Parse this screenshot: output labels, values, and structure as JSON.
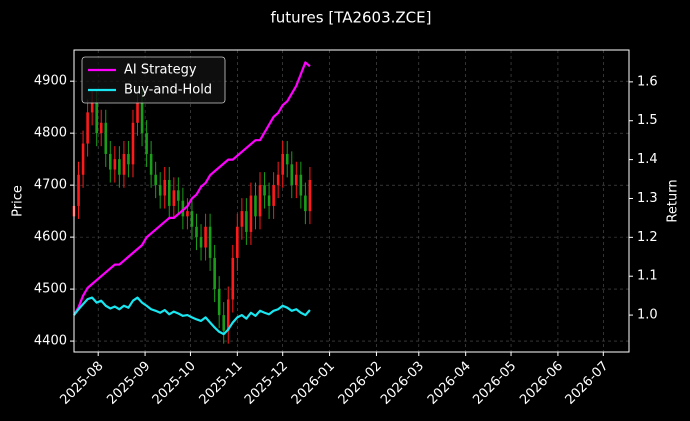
{
  "chart_data": {
    "type": "candlestick",
    "title": "futures [TA2603.ZCE]",
    "ylabel": "Price",
    "y2label": "Return",
    "x": [
      "2025-07-16",
      "2025-07-19",
      "2025-07-22",
      "2025-07-25",
      "2025-07-28",
      "2025-07-31",
      "2025-08-03",
      "2025-08-06",
      "2025-08-09",
      "2025-08-12",
      "2025-08-15",
      "2025-08-18",
      "2025-08-21",
      "2025-08-24",
      "2025-08-27",
      "2025-08-30",
      "2025-09-02",
      "2025-09-05",
      "2025-09-08",
      "2025-09-11",
      "2025-09-14",
      "2025-09-17",
      "2025-09-20",
      "2025-09-23",
      "2025-09-26",
      "2025-09-29",
      "2025-10-02",
      "2025-10-05",
      "2025-10-08",
      "2025-10-11",
      "2025-10-14",
      "2025-10-17",
      "2025-10-20",
      "2025-10-23",
      "2025-10-26",
      "2025-10-29",
      "2025-11-01",
      "2025-11-04",
      "2025-11-07",
      "2025-11-10",
      "2025-11-13",
      "2025-11-16",
      "2025-11-19",
      "2025-11-22",
      "2025-11-25",
      "2025-11-28",
      "2025-12-01",
      "2025-12-04",
      "2025-12-07",
      "2025-12-10",
      "2025-12-13",
      "2025-12-16",
      "2025-12-19"
    ],
    "open": [
      4640,
      4660,
      4720,
      4780,
      4840,
      4860,
      4800,
      4820,
      4760,
      4730,
      4750,
      4720,
      4760,
      4740,
      4820,
      4860,
      4800,
      4760,
      4720,
      4700,
      4680,
      4710,
      4660,
      4690,
      4670,
      4640,
      4650,
      4620,
      4600,
      4580,
      4620,
      4560,
      4500,
      4450,
      4420,
      4480,
      4560,
      4620,
      4650,
      4610,
      4680,
      4640,
      4700,
      4680,
      4660,
      4700,
      4720,
      4760,
      4740,
      4700,
      4720,
      4680,
      4650
    ],
    "high": [
      4685,
      4745,
      4805,
      4865,
      4885,
      4885,
      4845,
      4845,
      4785,
      4775,
      4775,
      4785,
      4785,
      4845,
      4885,
      4885,
      4825,
      4785,
      4745,
      4725,
      4735,
      4735,
      4715,
      4715,
      4695,
      4675,
      4675,
      4645,
      4625,
      4645,
      4645,
      4585,
      4525,
      4475,
      4505,
      4585,
      4645,
      4675,
      4675,
      4705,
      4705,
      4725,
      4725,
      4705,
      4725,
      4745,
      4785,
      4785,
      4765,
      4745,
      4745,
      4705,
      4735
    ],
    "low": [
      4615,
      4635,
      4695,
      4755,
      4815,
      4775,
      4775,
      4735,
      4705,
      4705,
      4695,
      4695,
      4715,
      4715,
      4795,
      4775,
      4735,
      4695,
      4675,
      4655,
      4655,
      4635,
      4635,
      4645,
      4615,
      4615,
      4595,
      4575,
      4555,
      4555,
      4535,
      4475,
      4425,
      4395,
      4395,
      4455,
      4535,
      4595,
      4585,
      4585,
      4615,
      4615,
      4655,
      4635,
      4635,
      4675,
      4695,
      4715,
      4675,
      4675,
      4655,
      4625,
      4625
    ],
    "close": [
      4660,
      4720,
      4780,
      4840,
      4860,
      4800,
      4820,
      4760,
      4730,
      4750,
      4720,
      4760,
      4740,
      4820,
      4860,
      4800,
      4760,
      4720,
      4700,
      4680,
      4710,
      4660,
      4690,
      4670,
      4640,
      4650,
      4620,
      4600,
      4580,
      4620,
      4560,
      4500,
      4450,
      4420,
      4480,
      4560,
      4620,
      4650,
      4610,
      4680,
      4640,
      4700,
      4680,
      4660,
      4700,
      4720,
      4760,
      4740,
      4700,
      4720,
      4680,
      4650,
      4710
    ],
    "up_color": "#ff1a1a",
    "down_color": "#1a9e1a",
    "series": [
      {
        "name": "AI Strategy",
        "color": "#ff00ff",
        "axis": "y2",
        "values": [
          1.0,
          1.02,
          1.05,
          1.07,
          1.08,
          1.09,
          1.1,
          1.11,
          1.12,
          1.13,
          1.13,
          1.14,
          1.15,
          1.16,
          1.17,
          1.18,
          1.2,
          1.21,
          1.22,
          1.23,
          1.24,
          1.25,
          1.25,
          1.26,
          1.27,
          1.28,
          1.3,
          1.31,
          1.33,
          1.34,
          1.36,
          1.37,
          1.38,
          1.39,
          1.4,
          1.4,
          1.41,
          1.42,
          1.43,
          1.44,
          1.45,
          1.45,
          1.47,
          1.49,
          1.51,
          1.52,
          1.54,
          1.55,
          1.57,
          1.59,
          1.62,
          1.65,
          1.64
        ]
      },
      {
        "name": "Buy-and-Hold",
        "color": "#19e6f0",
        "axis": "y2",
        "values": [
          1.0,
          1.015,
          1.028,
          1.041,
          1.045,
          1.032,
          1.037,
          1.024,
          1.017,
          1.022,
          1.015,
          1.024,
          1.019,
          1.037,
          1.045,
          1.032,
          1.024,
          1.015,
          1.011,
          1.006,
          1.013,
          1.002,
          1.009,
          1.004,
          0.998,
          1.0,
          0.994,
          0.989,
          0.985,
          0.994,
          0.981,
          0.968,
          0.957,
          0.951,
          0.963,
          0.981,
          0.994,
          1.0,
          0.991,
          1.006,
          0.998,
          1.011,
          1.006,
          1.002,
          1.011,
          1.015,
          1.024,
          1.019,
          1.011,
          1.015,
          1.006,
          1.0,
          1.013
        ]
      }
    ],
    "xlim": [
      "2025-07-16",
      "2026-07-18"
    ],
    "xticks": [
      "2025-08",
      "2025-09",
      "2025-10",
      "2025-11",
      "2025-12",
      "2026-01",
      "2026-02",
      "2026-03",
      "2026-04",
      "2026-05",
      "2026-06",
      "2026-07"
    ],
    "ylim": [
      4379,
      4960
    ],
    "yticks": [
      4400,
      4500,
      4600,
      4700,
      4800,
      4900
    ],
    "y2lim": [
      0.905,
      1.682
    ],
    "y2ticks": [
      {
        "value": 1.0,
        "label": "1.0"
      },
      1.1,
      1.2,
      1.3,
      1.4,
      1.5,
      1.6
    ],
    "grid": true,
    "legend": "upper left"
  }
}
